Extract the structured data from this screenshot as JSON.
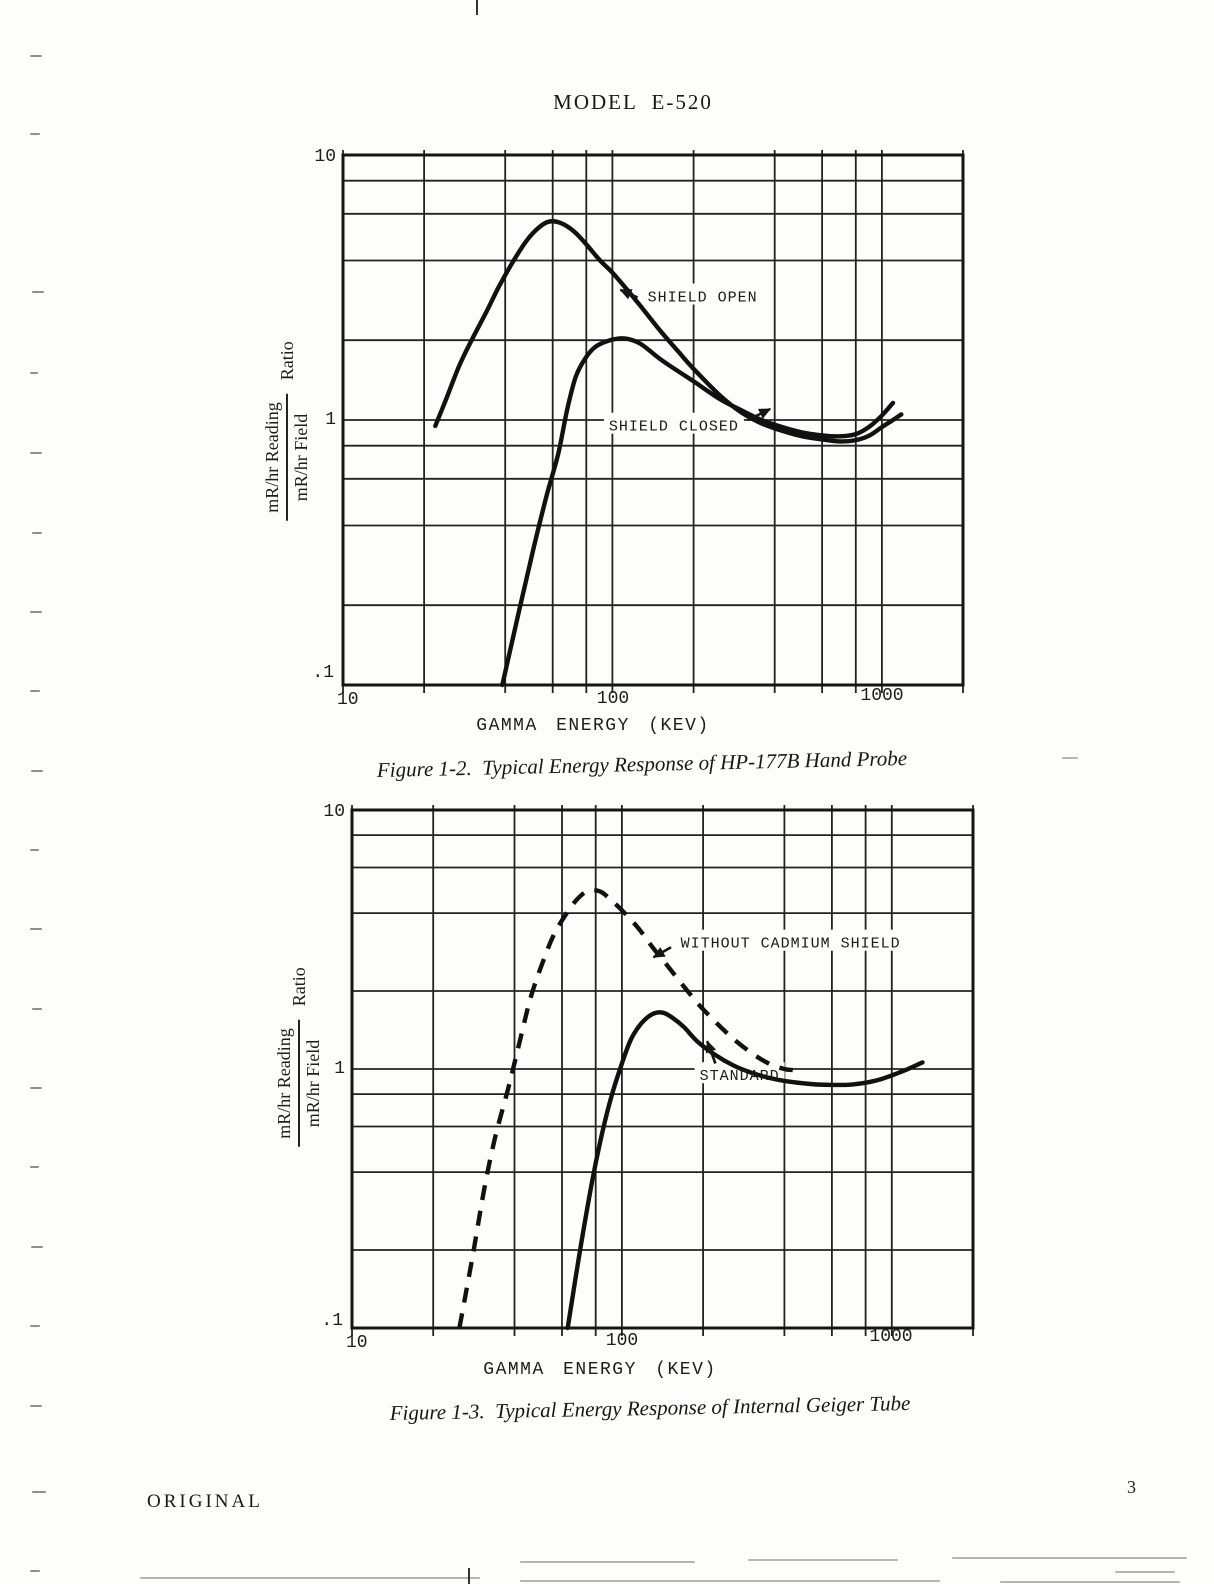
{
  "page": {
    "header": "MODEL  E-520",
    "footer_left": "ORIGINAL",
    "page_number": "3"
  },
  "chart_data": [
    {
      "type": "line",
      "figure_caption": "Figure 1-2.  Typical Energy Response of HP-177B Hand Probe",
      "xlabel": "GAMMA ENERGY (KEV)",
      "ylabel": "mR/hr Reading / mR/hr Field Ratio",
      "ylabel_parts": {
        "numerator": "mR/hr Reading",
        "denominator": "mR/hr Field",
        "suffix": "Ratio"
      },
      "x_scale": "log",
      "y_scale": "log",
      "xlim": [
        10,
        2000
      ],
      "ylim": [
        0.1,
        10
      ],
      "x_gridlines": [
        10,
        20,
        40,
        60,
        80,
        100,
        200,
        400,
        600,
        800,
        1000,
        2000
      ],
      "y_gridlines": [
        0.1,
        0.2,
        0.4,
        0.6,
        0.8,
        1,
        2,
        4,
        6,
        8,
        10
      ],
      "x_tick_labels": [
        "10",
        "100",
        "1000"
      ],
      "y_tick_labels": [
        "10",
        "1",
        ".1"
      ],
      "grid": true,
      "line_color": "#111111",
      "series": [
        {
          "name": "SHIELD OPEN",
          "line": "solid",
          "points": [
            [
              22,
              0.95
            ],
            [
              24,
              1.18
            ],
            [
              27,
              1.6
            ],
            [
              30,
              2.0
            ],
            [
              34,
              2.55
            ],
            [
              38,
              3.2
            ],
            [
              43,
              4.0
            ],
            [
              48,
              4.75
            ],
            [
              53,
              5.3
            ],
            [
              58,
              5.6
            ],
            [
              64,
              5.55
            ],
            [
              72,
              5.15
            ],
            [
              80,
              4.6
            ],
            [
              90,
              4.0
            ],
            [
              100,
              3.6
            ],
            [
              115,
              3.05
            ],
            [
              130,
              2.62
            ],
            [
              150,
              2.18
            ],
            [
              175,
              1.82
            ],
            [
              200,
              1.56
            ],
            [
              250,
              1.24
            ],
            [
              300,
              1.07
            ],
            [
              350,
              0.98
            ],
            [
              400,
              0.93
            ],
            [
              500,
              0.87
            ],
            [
              600,
              0.845
            ],
            [
              700,
              0.83
            ],
            [
              800,
              0.84
            ],
            [
              900,
              0.875
            ],
            [
              1000,
              0.94
            ],
            [
              1100,
              1.0
            ],
            [
              1180,
              1.05
            ]
          ]
        },
        {
          "name": "SHIELD CLOSED",
          "line": "solid",
          "points": [
            [
              39,
              0.1
            ],
            [
              45,
              0.19
            ],
            [
              51,
              0.33
            ],
            [
              57,
              0.52
            ],
            [
              63,
              0.75
            ],
            [
              68,
              1.1
            ],
            [
              73,
              1.45
            ],
            [
              79,
              1.7
            ],
            [
              86,
              1.88
            ],
            [
              95,
              1.98
            ],
            [
              105,
              2.03
            ],
            [
              115,
              2.02
            ],
            [
              128,
              1.93
            ],
            [
              150,
              1.7
            ],
            [
              175,
              1.53
            ],
            [
              200,
              1.4
            ],
            [
              250,
              1.2
            ],
            [
              300,
              1.09
            ],
            [
              350,
              1.01
            ],
            [
              400,
              0.96
            ],
            [
              500,
              0.9
            ],
            [
              600,
              0.875
            ],
            [
              700,
              0.868
            ],
            [
              800,
              0.885
            ],
            [
              900,
              0.945
            ],
            [
              1000,
              1.04
            ],
            [
              1100,
              1.16
            ]
          ]
        }
      ],
      "annotations": [
        {
          "text": "SHIELD OPEN",
          "text_at": [
            135,
            2.95
          ],
          "arrow_from": [
            124,
            2.9
          ],
          "arrow_to": [
            107,
            3.1
          ]
        },
        {
          "text": "SHIELD CLOSED",
          "text_at": [
            97,
            0.96
          ],
          "arrow_from": [
            318,
            1.0
          ],
          "arrow_to": [
            385,
            1.1
          ]
        }
      ]
    },
    {
      "type": "line",
      "figure_caption": "Figure 1-3.  Typical Energy Response of Internal Geiger Tube",
      "xlabel": "GAMMA ENERGY (KEV)",
      "ylabel": "mR/hr Reading / mR/hr Field Ratio",
      "ylabel_parts": {
        "numerator": "mR/hr Reading",
        "denominator": "mR/hr Field",
        "suffix": "Ratio"
      },
      "x_scale": "log",
      "y_scale": "log",
      "xlim": [
        10,
        2000
      ],
      "ylim": [
        0.1,
        10
      ],
      "x_gridlines": [
        10,
        20,
        40,
        60,
        80,
        100,
        200,
        400,
        600,
        800,
        1000,
        2000
      ],
      "y_gridlines": [
        0.1,
        0.2,
        0.4,
        0.6,
        0.8,
        1,
        2,
        4,
        6,
        8,
        10
      ],
      "x_tick_labels": [
        "10",
        "100",
        "1000"
      ],
      "y_tick_labels": [
        "10",
        "1",
        ".1"
      ],
      "grid": true,
      "line_color": "#111111",
      "series": [
        {
          "name": "WITHOUT CADMIUM SHIELD",
          "line": "dashed",
          "points": [
            [
              25,
              0.1
            ],
            [
              28,
              0.19
            ],
            [
              31,
              0.35
            ],
            [
              34,
              0.55
            ],
            [
              38,
              0.85
            ],
            [
              42,
              1.3
            ],
            [
              46,
              1.9
            ],
            [
              51,
              2.6
            ],
            [
              56,
              3.3
            ],
            [
              62,
              3.95
            ],
            [
              68,
              4.5
            ],
            [
              75,
              4.88
            ],
            [
              83,
              4.85
            ],
            [
              90,
              4.55
            ],
            [
              100,
              4.1
            ],
            [
              115,
              3.5
            ],
            [
              130,
              2.95
            ],
            [
              150,
              2.45
            ],
            [
              175,
              2.0
            ],
            [
              200,
              1.7
            ],
            [
              250,
              1.35
            ],
            [
              300,
              1.16
            ],
            [
              350,
              1.05
            ],
            [
              400,
              1.0
            ],
            [
              430,
              0.99
            ]
          ]
        },
        {
          "name": "STANDARD",
          "line": "solid",
          "points": [
            [
              63,
              0.1
            ],
            [
              70,
              0.2
            ],
            [
              78,
              0.38
            ],
            [
              85,
              0.58
            ],
            [
              92,
              0.8
            ],
            [
              100,
              1.05
            ],
            [
              108,
              1.3
            ],
            [
              118,
              1.5
            ],
            [
              130,
              1.63
            ],
            [
              142,
              1.65
            ],
            [
              155,
              1.57
            ],
            [
              170,
              1.45
            ],
            [
              190,
              1.28
            ],
            [
              220,
              1.14
            ],
            [
              260,
              1.03
            ],
            [
              300,
              0.97
            ],
            [
              350,
              0.925
            ],
            [
              400,
              0.9
            ],
            [
              500,
              0.875
            ],
            [
              600,
              0.868
            ],
            [
              700,
              0.87
            ],
            [
              800,
              0.885
            ],
            [
              900,
              0.91
            ],
            [
              1000,
              0.945
            ],
            [
              1150,
              1.0
            ],
            [
              1300,
              1.06
            ]
          ]
        }
      ],
      "annotations": [
        {
          "text": "WITHOUT CADMIUM SHIELD",
          "text_at": [
            165,
            3.1
          ],
          "arrow_from": [
            152,
            2.95
          ],
          "arrow_to": [
            131,
            2.7
          ]
        },
        {
          "text": "STANDARD",
          "text_at": [
            194,
            0.955
          ],
          "arrow_from": [
            222,
            1.05
          ],
          "arrow_to": [
            207,
            1.28
          ]
        }
      ]
    }
  ],
  "scan_artifacts": {
    "left_marks": [
      [
        55,
        30,
        12
      ],
      [
        133,
        30,
        10
      ],
      [
        291,
        32,
        12
      ],
      [
        372,
        30,
        8
      ],
      [
        452,
        30,
        12
      ],
      [
        532,
        32,
        10
      ],
      [
        611,
        30,
        12
      ],
      [
        690,
        30,
        10
      ],
      [
        770,
        31,
        12
      ],
      [
        849,
        30,
        9
      ],
      [
        928,
        30,
        12
      ],
      [
        1008,
        32,
        10
      ],
      [
        1087,
        30,
        12
      ],
      [
        1166,
        30,
        9
      ],
      [
        1246,
        31,
        12
      ],
      [
        1325,
        30,
        10
      ],
      [
        1405,
        30,
        12
      ],
      [
        1491,
        32,
        14
      ],
      [
        1570,
        30,
        10
      ]
    ],
    "bottom_marks": [
      [
        520,
        1561,
        175
      ],
      [
        748,
        1559,
        150
      ],
      [
        952,
        1557,
        235
      ],
      [
        1115,
        1571,
        60
      ],
      [
        140,
        1577,
        340
      ],
      [
        520,
        1580,
        420
      ],
      [
        1000,
        1581,
        180
      ]
    ],
    "misc_marks": [
      [
        1062,
        757,
        16
      ]
    ],
    "top_tick": {
      "x": 476,
      "h": 15
    },
    "bottom_tick": {
      "x": 468,
      "h": 16
    }
  }
}
